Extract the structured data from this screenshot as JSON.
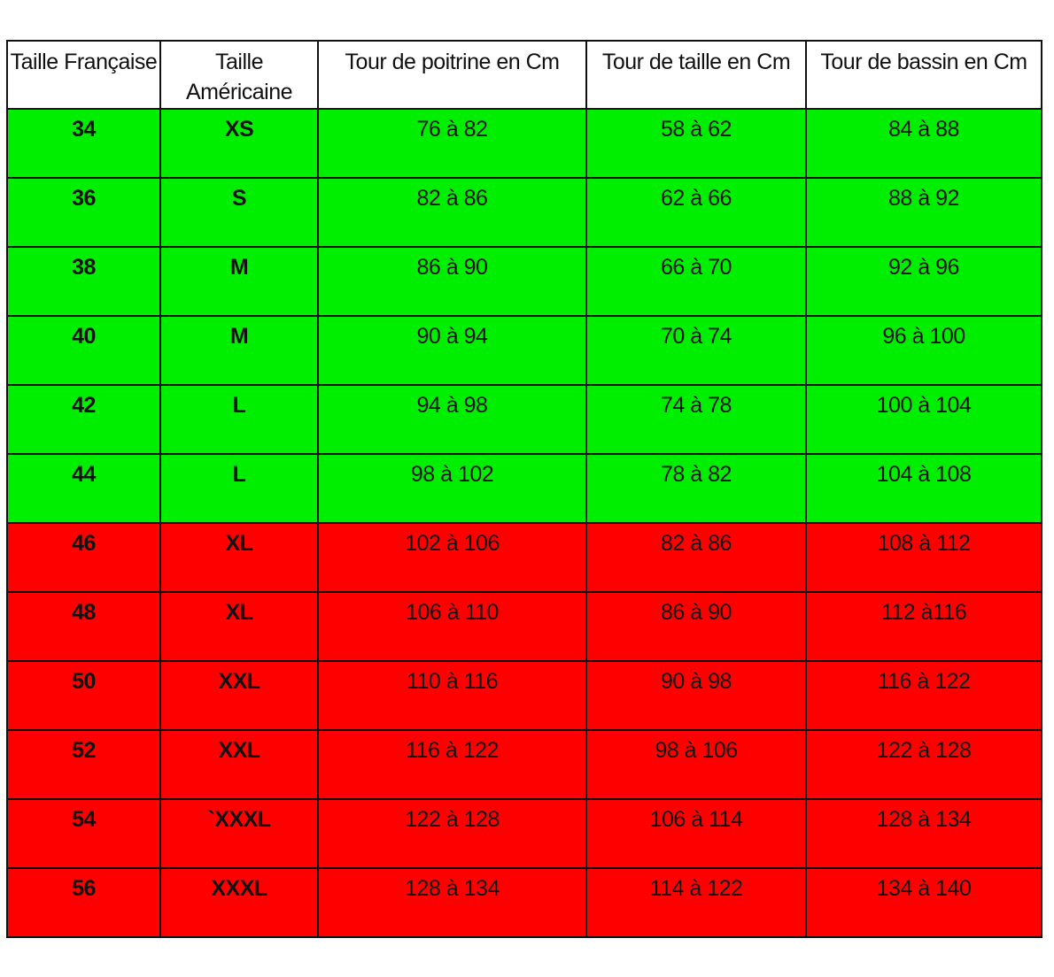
{
  "headers": [
    "Taille Française",
    "Taille Américaine",
    "Tour de poitrine en Cm",
    "Tour de taille en Cm",
    "Tour de bassin en Cm"
  ],
  "colors": {
    "green": "#00ee00",
    "red": "#ff0000"
  },
  "rows": [
    {
      "status": "green",
      "cells": [
        "34",
        "XS",
        "76 à 82",
        "58 à 62",
        "84 à 88"
      ]
    },
    {
      "status": "green",
      "cells": [
        "36",
        "S",
        "82 à 86",
        "62 à 66",
        "88 à 92"
      ]
    },
    {
      "status": "green",
      "cells": [
        "38",
        "M",
        "86 à 90",
        "66 à 70",
        "92 à 96"
      ]
    },
    {
      "status": "green",
      "cells": [
        "40",
        "M",
        "90 à 94",
        "70 à 74",
        "96 à 100"
      ]
    },
    {
      "status": "green",
      "cells": [
        "42",
        "L",
        "94 à 98",
        "74 à 78",
        "100 à 104"
      ]
    },
    {
      "status": "green",
      "cells": [
        "44",
        "L",
        "98 à 102",
        "78 à 82",
        "104 à 108"
      ]
    },
    {
      "status": "red",
      "cells": [
        "46",
        "XL",
        "102 à 106",
        "82 à 86",
        "108 à 112"
      ]
    },
    {
      "status": "red",
      "cells": [
        "48",
        "XL",
        "106 à 110",
        "86 à 90",
        "112 à116"
      ]
    },
    {
      "status": "red",
      "cells": [
        "50",
        "XXL",
        "110 à 116",
        "90 à 98",
        "116 à 122"
      ]
    },
    {
      "status": "red",
      "cells": [
        "52",
        "XXL",
        "116 à 122",
        "98 à 106",
        "122 à 128"
      ]
    },
    {
      "status": "red",
      "cells": [
        "54",
        "`XXXL",
        "122 à 128",
        "106 à 114",
        "128 à 134"
      ]
    },
    {
      "status": "red",
      "cells": [
        "56",
        "XXXL",
        "128 à 134",
        "114 à 122",
        "134 à 140"
      ]
    }
  ]
}
